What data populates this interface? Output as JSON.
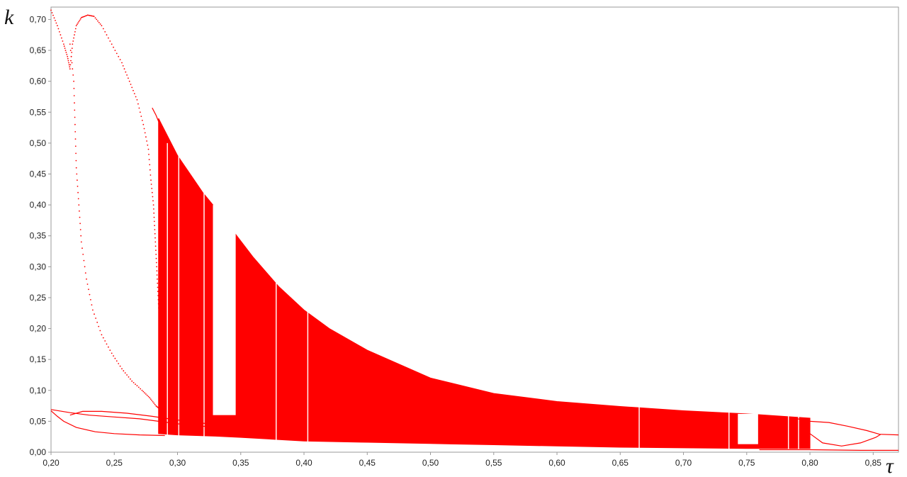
{
  "chart_data": {
    "type": "scatter",
    "title": "",
    "xlabel": "τ",
    "ylabel": "k",
    "xlim": [
      0.2,
      0.87
    ],
    "ylim": [
      0.0,
      0.72
    ],
    "x_ticks": [
      "0,20",
      "0,25",
      "0,30",
      "0,35",
      "0,40",
      "0,45",
      "0,50",
      "0,55",
      "0,60",
      "0,65",
      "0,70",
      "0,75",
      "0,80",
      "0,85"
    ],
    "y_ticks": [
      "0,00",
      "0,05",
      "0,10",
      "0,15",
      "0,20",
      "0,25",
      "0,30",
      "0,35",
      "0,40",
      "0,45",
      "0,50",
      "0,55",
      "0,60",
      "0,65",
      "0,70"
    ],
    "grid": false,
    "legend": "none",
    "colors": {
      "points": "#ff0000",
      "axes": "#9a9a9a",
      "background": "#ffffff"
    },
    "series": [
      {
        "kind": "dotted-loop",
        "points": [
          [
            0.215,
            0.66
          ],
          [
            0.218,
            0.6
          ],
          [
            0.219,
            0.53
          ],
          [
            0.22,
            0.46
          ],
          [
            0.222,
            0.4
          ],
          [
            0.224,
            0.34
          ],
          [
            0.228,
            0.28
          ],
          [
            0.233,
            0.23
          ],
          [
            0.24,
            0.19
          ],
          [
            0.248,
            0.16
          ],
          [
            0.256,
            0.135
          ],
          [
            0.264,
            0.115
          ],
          [
            0.272,
            0.1
          ],
          [
            0.278,
            0.088
          ],
          [
            0.283,
            0.075
          ],
          [
            0.287,
            0.068
          ]
        ]
      },
      {
        "kind": "dotted-loop",
        "points": [
          [
            0.2,
            0.715
          ],
          [
            0.205,
            0.69
          ],
          [
            0.21,
            0.66
          ],
          [
            0.213,
            0.64
          ],
          [
            0.215,
            0.62
          ],
          [
            0.217,
            0.66
          ],
          [
            0.22,
            0.69
          ],
          [
            0.224,
            0.703
          ],
          [
            0.229,
            0.707
          ],
          [
            0.234,
            0.705
          ],
          [
            0.24,
            0.69
          ],
          [
            0.248,
            0.66
          ],
          [
            0.256,
            0.63
          ],
          [
            0.262,
            0.6
          ],
          [
            0.268,
            0.57
          ],
          [
            0.273,
            0.53
          ],
          [
            0.277,
            0.49
          ],
          [
            0.279,
            0.44
          ],
          [
            0.281,
            0.4
          ],
          [
            0.282,
            0.36
          ],
          [
            0.283,
            0.32
          ],
          [
            0.284,
            0.28
          ],
          [
            0.285,
            0.24
          ],
          [
            0.286,
            0.2
          ],
          [
            0.287,
            0.16
          ],
          [
            0.288,
            0.12
          ],
          [
            0.289,
            0.09
          ],
          [
            0.29,
            0.07
          ]
        ]
      },
      {
        "kind": "solid-curve",
        "points": [
          [
            0.2,
            0.069
          ],
          [
            0.215,
            0.064
          ],
          [
            0.23,
            0.06
          ],
          [
            0.25,
            0.057
          ],
          [
            0.27,
            0.054
          ],
          [
            0.285,
            0.05
          ],
          [
            0.3,
            0.046
          ],
          [
            0.32,
            0.042
          ],
          [
            0.34,
            0.04
          ]
        ]
      },
      {
        "kind": "solid-curve",
        "points": [
          [
            0.2,
            0.067
          ],
          [
            0.205,
            0.058
          ],
          [
            0.21,
            0.05
          ],
          [
            0.22,
            0.04
          ],
          [
            0.235,
            0.033
          ],
          [
            0.25,
            0.03
          ],
          [
            0.27,
            0.028
          ],
          [
            0.29,
            0.027
          ]
        ]
      },
      {
        "kind": "solid-curve",
        "points": [
          [
            0.215,
            0.06
          ],
          [
            0.225,
            0.066
          ],
          [
            0.24,
            0.066
          ],
          [
            0.26,
            0.063
          ],
          [
            0.28,
            0.058
          ],
          [
            0.3,
            0.052
          ],
          [
            0.32,
            0.047
          ],
          [
            0.345,
            0.04
          ]
        ]
      },
      {
        "kind": "solid-curve",
        "points": [
          [
            0.28,
            0.557
          ],
          [
            0.283,
            0.545
          ],
          [
            0.287,
            0.525
          ]
        ]
      },
      {
        "kind": "solid-curve",
        "points": [
          [
            0.79,
            0.054
          ],
          [
            0.8,
            0.05
          ],
          [
            0.815,
            0.048
          ],
          [
            0.83,
            0.042
          ],
          [
            0.845,
            0.035
          ],
          [
            0.855,
            0.029
          ],
          [
            0.87,
            0.028
          ]
        ]
      },
      {
        "kind": "solid-curve",
        "points": [
          [
            0.8,
            0.03
          ],
          [
            0.81,
            0.015
          ],
          [
            0.825,
            0.01
          ],
          [
            0.84,
            0.015
          ],
          [
            0.852,
            0.024
          ],
          [
            0.856,
            0.029
          ]
        ]
      },
      {
        "kind": "solid-curve",
        "points": [
          [
            0.76,
            0.004
          ],
          [
            0.8,
            0.004
          ],
          [
            0.84,
            0.003
          ],
          [
            0.87,
            0.003
          ]
        ]
      },
      {
        "kind": "filled-band",
        "upper": [
          [
            0.285,
            0.54
          ],
          [
            0.3,
            0.48
          ],
          [
            0.32,
            0.42
          ],
          [
            0.33,
            0.395
          ],
          [
            0.345,
            0.355
          ],
          [
            0.36,
            0.315
          ],
          [
            0.38,
            0.268
          ],
          [
            0.4,
            0.23
          ],
          [
            0.42,
            0.2
          ],
          [
            0.45,
            0.165
          ],
          [
            0.5,
            0.12
          ],
          [
            0.55,
            0.095
          ],
          [
            0.6,
            0.082
          ],
          [
            0.65,
            0.074
          ],
          [
            0.7,
            0.067
          ],
          [
            0.75,
            0.062
          ],
          [
            0.8,
            0.055
          ]
        ],
        "lower": [
          [
            0.285,
            0.03
          ],
          [
            0.3,
            0.028
          ],
          [
            0.33,
            0.026
          ],
          [
            0.35,
            0.024
          ],
          [
            0.4,
            0.018
          ],
          [
            0.45,
            0.016
          ],
          [
            0.5,
            0.014
          ],
          [
            0.55,
            0.012
          ],
          [
            0.6,
            0.01
          ],
          [
            0.65,
            0.008
          ],
          [
            0.7,
            0.007
          ],
          [
            0.75,
            0.006
          ],
          [
            0.8,
            0.006
          ]
        ]
      }
    ],
    "gaps": [
      {
        "x_range": [
          0.328,
          0.346
        ],
        "k_range": [
          0.06,
          0.4
        ]
      },
      {
        "x_range": [
          0.743,
          0.759
        ],
        "k_range": [
          0.013,
          0.062
        ]
      }
    ],
    "white_lines_x": [
      0.292,
      0.301,
      0.321,
      0.378,
      0.403,
      0.665,
      0.736,
      0.783,
      0.791
    ]
  }
}
